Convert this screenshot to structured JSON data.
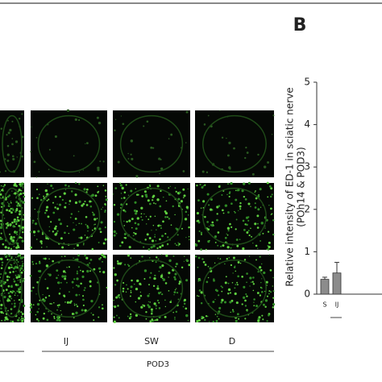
{
  "panel_label": "B",
  "image_columns": [
    "IJ",
    "SW",
    "D"
  ],
  "group_label": "POD3",
  "chart_data": {
    "type": "bar",
    "ylabel": "Relative intensity of ED-1 in sciatic nerve",
    "ylabel_sub": "(POh14 & POD3)",
    "categories": [
      "S",
      "IJ"
    ],
    "values": [
      0.35,
      0.5
    ],
    "errors": [
      0.05,
      0.25
    ],
    "color": "#8c8c8c",
    "ylim": [
      0,
      5
    ],
    "yticks": [
      0,
      1,
      2,
      3,
      4,
      5
    ]
  }
}
